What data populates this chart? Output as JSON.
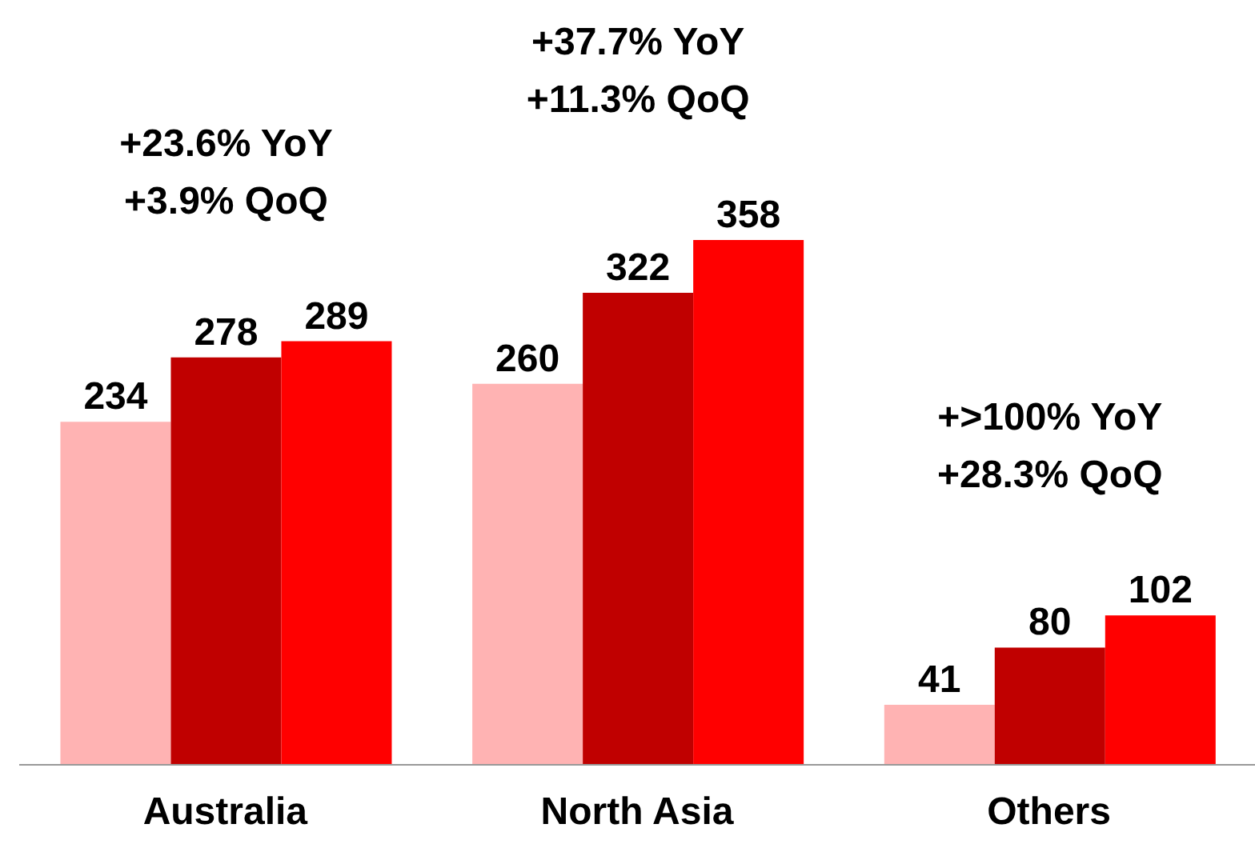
{
  "chart_data": {
    "type": "bar",
    "categories": [
      "Australia",
      "North Asia",
      "Others"
    ],
    "series": [
      {
        "color": "#ffb3b3",
        "values": [
          234,
          260,
          41
        ]
      },
      {
        "color": "#c00000",
        "values": [
          278,
          322,
          80
        ]
      },
      {
        "color": "#ff0000",
        "values": [
          289,
          358,
          102
        ]
      }
    ],
    "data_labels": true,
    "annotations": [
      "+23.6% YoY\n+3.9% QoQ",
      "+37.7% YoY\n+11.3% QoQ",
      "+>100% YoY\n+28.3% QoQ"
    ]
  }
}
